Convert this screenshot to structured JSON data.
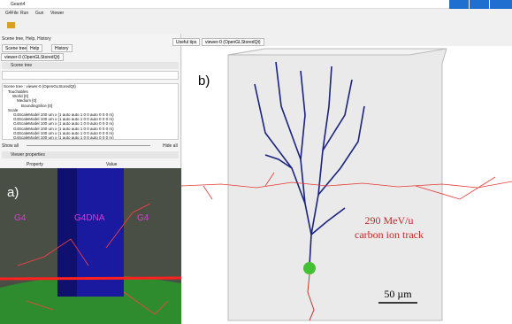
{
  "window": {
    "title": "Geant4",
    "menu": [
      "G4File",
      "Run",
      "Gun",
      "Viewer"
    ]
  },
  "left_panel": {
    "dock_title": "Scene tree, Help, History",
    "tabs": [
      "Scene tree",
      "Help",
      "History"
    ],
    "viewer_tab": "viewer-0 (OpenGLStoredQt)",
    "section": "Scene tree",
    "tree_header": "Scene tree : viewer-0 (OpenGLStoredQt)",
    "tree_items": [
      "Touchables",
      "World [0]",
      "Medium [0]",
      "BoundingSlice [0]",
      "Scale",
      "G4ScaleModel 100 um x (1 auto auto 1 0 0 auto 0 0 0 m)",
      "G4ScaleModel 100 um x (1 auto auto 1 0 0 auto 0 0 0 m)",
      "G4ScaleModel 100 um x (1 auto auto 1 0 0 auto 0 0 0 m)",
      "G4ScaleModel 100 um x (1 auto auto 1 0 0 auto 0 0 0 m)",
      "G4ScaleModel 100 um x (1 auto auto 1 0 0 auto 0 0 0 m)",
      "G4ScaleModel 100 um x (1 auto auto 1 0 0 auto 0 0 0 m)"
    ],
    "show_all": "Show all",
    "hide_all": "Hide all",
    "properties": "Viewer properties",
    "prop_cols": [
      "Property",
      "Value"
    ]
  },
  "viewer_tabs": [
    "Useful tips",
    "viewer-0 (OpenGLStoredQt)"
  ],
  "inset_a": {
    "label": "a)",
    "left": "G4",
    "middle": "G4DNA",
    "right": "G4"
  },
  "panel_b": {
    "label": "b)",
    "track_line1": "290 MeV/u",
    "track_line2": "carbon ion track",
    "scale": "50 µm"
  }
}
